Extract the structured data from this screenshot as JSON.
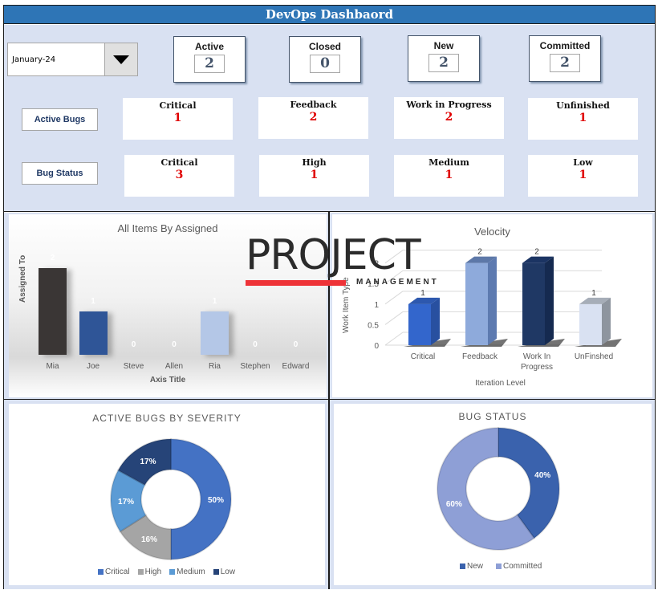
{
  "header": {
    "title": "DevOps Dashbaord"
  },
  "filter": {
    "month_selected": "January-24",
    "dropdown_icon": "triangle-down-icon"
  },
  "status_cards": [
    {
      "label": "Active",
      "value": "2"
    },
    {
      "label": "Closed",
      "value": "0"
    },
    {
      "label": "New",
      "value": "2"
    },
    {
      "label": "Committed",
      "value": "2"
    }
  ],
  "active_bugs": {
    "label": "Active Bugs",
    "metrics": [
      {
        "label": "Critical",
        "value": "1"
      },
      {
        "label": "Feedback",
        "value": "2"
      },
      {
        "label": "Work in Progress",
        "value": "2"
      },
      {
        "label": "Unfinished",
        "value": "1"
      }
    ]
  },
  "bug_status": {
    "label": "Bug Status",
    "metrics": [
      {
        "label": "Critical",
        "value": "3"
      },
      {
        "label": "High",
        "value": "1"
      },
      {
        "label": "Medium",
        "value": "1"
      },
      {
        "label": "Low",
        "value": "1"
      }
    ]
  },
  "logo": {
    "main": "PROJECT",
    "sub": "MANAGEMENT"
  },
  "colors": {
    "title_bar": "#2e75b6",
    "panel_bg": "#d9e1f2",
    "metric_value": "#e00000"
  },
  "chart_data": [
    {
      "type": "bar",
      "title": "All Items By Assigned",
      "xlabel": "Axis Title",
      "ylabel": "Assigned To",
      "categories": [
        "Mia",
        "Joe",
        "Steve",
        "Allen",
        "Ria",
        "Stephen",
        "Edward"
      ],
      "values": [
        2,
        1,
        0,
        0,
        1,
        0,
        0
      ],
      "value_labels": [
        "2",
        "1",
        "0",
        "0",
        "1",
        "0",
        "0"
      ],
      "colors": [
        "#3a3635",
        "#2f5597",
        "#2f5597",
        "#2f5597",
        "#b4c7e7",
        "#2f5597",
        "#2f5597"
      ],
      "grid": false
    },
    {
      "type": "bar",
      "title": "Velocity",
      "xlabel": "Iteration Level",
      "ylabel": "Work Item Type",
      "categories": [
        "Critical",
        "Feedback",
        "Work In Progress",
        "UnFinshed"
      ],
      "category_lines": [
        [
          "Critical"
        ],
        [
          "Feedback"
        ],
        [
          "Work In",
          "Progress"
        ],
        [
          "UnFinshed"
        ]
      ],
      "values": [
        1,
        2,
        2,
        1
      ],
      "value_labels": [
        "1",
        "2",
        "2",
        "1"
      ],
      "yticks": [
        "0",
        "0.5",
        "1",
        "1.5",
        "2"
      ],
      "ylim": [
        0,
        2
      ],
      "colors": [
        "#3366cc",
        "#8eaadb",
        "#1f3864",
        "#d9e1f2"
      ],
      "grid": true
    },
    {
      "type": "pie",
      "donut": true,
      "title": "ACTIVE BUGS BY SEVERITY",
      "labels": [
        "Critical",
        "High",
        "Medium",
        "Low"
      ],
      "values": [
        50,
        16,
        17,
        17
      ],
      "value_labels": [
        "50%",
        "16%",
        "17%",
        "17%"
      ],
      "colors": [
        "#4472c4",
        "#a5a5a5",
        "#5b9bd5",
        "#264478"
      ],
      "legend_position": "bottom"
    },
    {
      "type": "pie",
      "donut": true,
      "title": "BUG STATUS",
      "labels": [
        "New",
        "Committed"
      ],
      "values": [
        40,
        60
      ],
      "value_labels": [
        "40%",
        "60%"
      ],
      "colors": [
        "#3a62ad",
        "#8e9fd6"
      ],
      "legend_position": "bottom"
    }
  ]
}
